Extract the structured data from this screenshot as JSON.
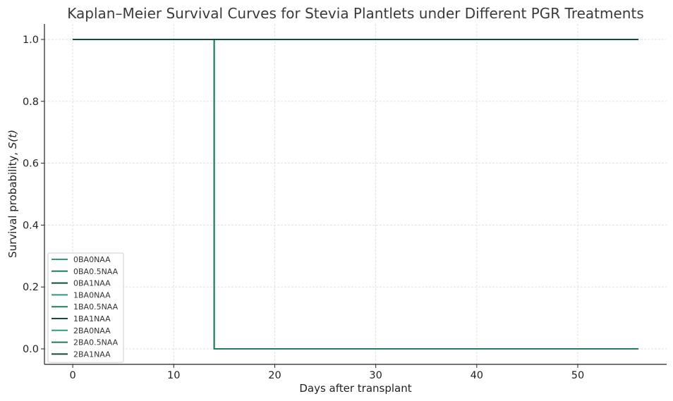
{
  "chart_data": {
    "type": "line",
    "step": true,
    "title": "Kaplan–Meier Survival Curves for Stevia Plantlets under Different PGR Treatments",
    "xlabel": "Days after transplant",
    "ylabel_prefix": "Survival probability, ",
    "ylabel_math": "S(t)",
    "xlim": [
      -2.8,
      58.8
    ],
    "ylim": [
      -0.05,
      1.05
    ],
    "xticks": [
      0,
      10,
      20,
      30,
      40,
      50
    ],
    "xtick_labels": [
      "0",
      "10",
      "20",
      "30",
      "40",
      "50"
    ],
    "yticks": [
      0.0,
      0.2,
      0.4,
      0.6,
      0.8,
      1.0
    ],
    "ytick_labels": [
      "0.0",
      "0.2",
      "0.4",
      "0.6",
      "0.8",
      "1.0"
    ],
    "grid": true,
    "legend_position": "lower-left",
    "series": [
      {
        "name": "0BA0NAA",
        "color": "#2a9d80",
        "x": [
          0,
          14,
          14,
          56
        ],
        "y": [
          1.0,
          1.0,
          0.0,
          0.0
        ]
      },
      {
        "name": "0BA0.5NAA",
        "color": "#217a63",
        "x": [
          0,
          14,
          14,
          56
        ],
        "y": [
          1.0,
          1.0,
          0.0,
          0.0
        ]
      },
      {
        "name": "0BA1NAA",
        "color": "#0f4d3a",
        "x": [
          0,
          56
        ],
        "y": [
          1.0,
          1.0
        ]
      },
      {
        "name": "1BA0NAA",
        "color": "#2a9d80",
        "x": [
          0,
          14,
          14,
          56
        ],
        "y": [
          1.0,
          1.0,
          0.0,
          0.0
        ]
      },
      {
        "name": "1BA0.5NAA",
        "color": "#217a63",
        "x": [
          0,
          14,
          14,
          56
        ],
        "y": [
          1.0,
          1.0,
          0.0,
          0.0
        ]
      },
      {
        "name": "1BA1NAA",
        "color": "#0f4d3a",
        "x": [
          0,
          56
        ],
        "y": [
          1.0,
          1.0
        ]
      },
      {
        "name": "2BA0NAA",
        "color": "#2a9d80",
        "x": [
          0,
          14,
          14,
          56
        ],
        "y": [
          1.0,
          1.0,
          0.0,
          0.0
        ]
      },
      {
        "name": "2BA0.5NAA",
        "color": "#217a63",
        "x": [
          0,
          14,
          14,
          56
        ],
        "y": [
          1.0,
          1.0,
          0.0,
          0.0
        ]
      },
      {
        "name": "2BA1NAA",
        "color": "#0f4d3a",
        "x": [
          0,
          56
        ],
        "y": [
          1.0,
          1.0
        ]
      }
    ]
  }
}
